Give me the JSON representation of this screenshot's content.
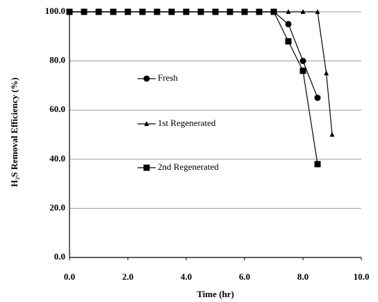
{
  "chart_data": {
    "type": "line",
    "xlabel": "Time (hr)",
    "ylabel": "H₂S Removal Efficiency (%)",
    "xlim": [
      0,
      10
    ],
    "ylim": [
      0,
      100
    ],
    "xticks": [
      {
        "value": 0,
        "label": "0.0"
      },
      {
        "value": 2,
        "label": "2.0"
      },
      {
        "value": 4,
        "label": "4.0"
      },
      {
        "value": 6,
        "label": "6.0"
      },
      {
        "value": 8,
        "label": "8.0"
      },
      {
        "value": 10,
        "label": "10.0"
      }
    ],
    "yticks": [
      {
        "value": 0,
        "label": "0.0"
      },
      {
        "value": 20,
        "label": "20.0"
      },
      {
        "value": 40,
        "label": "40.0"
      },
      {
        "value": 60,
        "label": "60.0"
      },
      {
        "value": 80,
        "label": "80.0"
      },
      {
        "value": 100,
        "label": "100.0"
      }
    ],
    "grid": true,
    "series": [
      {
        "name": "Fresh",
        "marker": "circle",
        "color": "#000000",
        "x": [
          0,
          0.5,
          1,
          1.5,
          2,
          2.5,
          3,
          3.5,
          4,
          4.5,
          5,
          5.5,
          6,
          6.5,
          7,
          7.5,
          8,
          8.5
        ],
        "values": [
          100,
          100,
          100,
          100,
          100,
          100,
          100,
          100,
          100,
          100,
          100,
          100,
          100,
          100,
          100,
          95,
          80,
          65
        ]
      },
      {
        "name": "1st Regenerated",
        "marker": "triangle",
        "color": "#000000",
        "x": [
          0,
          0.5,
          1,
          1.5,
          2,
          2.5,
          3,
          3.5,
          4,
          4.5,
          5,
          5.5,
          6,
          6.5,
          7,
          7.5,
          8,
          8.5,
          8.8,
          9
        ],
        "values": [
          100,
          100,
          100,
          100,
          100,
          100,
          100,
          100,
          100,
          100,
          100,
          100,
          100,
          100,
          100,
          100,
          100,
          100,
          75,
          50
        ]
      },
      {
        "name": "2nd Regenerated",
        "marker": "square",
        "color": "#000000",
        "x": [
          0,
          0.5,
          1,
          1.5,
          2,
          2.5,
          3,
          3.5,
          4,
          4.5,
          5,
          5.5,
          6,
          6.5,
          7,
          7.5,
          8,
          8.5
        ],
        "values": [
          100,
          100,
          100,
          100,
          100,
          100,
          100,
          100,
          100,
          100,
          100,
          100,
          100,
          100,
          100,
          88,
          76,
          38
        ]
      }
    ]
  }
}
